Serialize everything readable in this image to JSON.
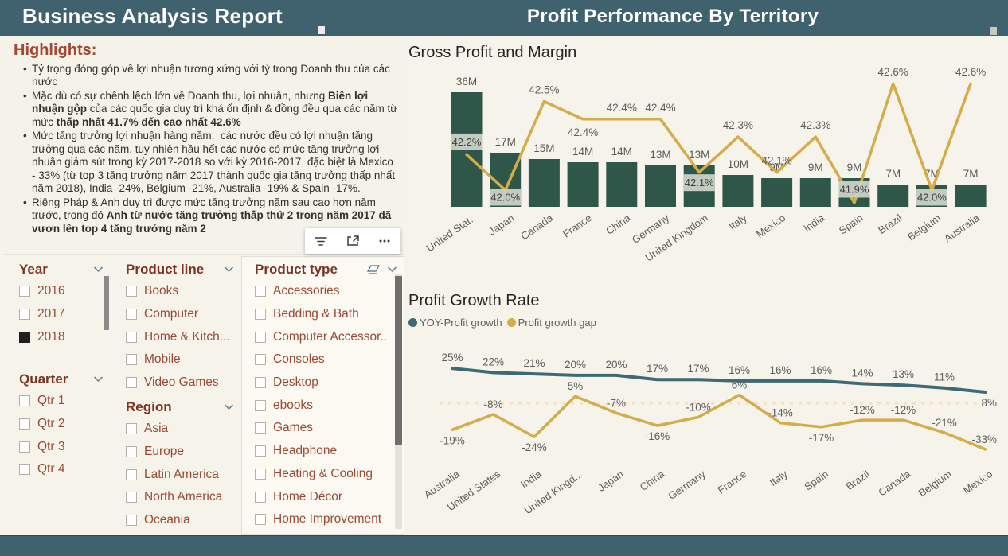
{
  "header": {
    "left_title": "Business Analysis Report",
    "right_title": "Profit Performance By Territory"
  },
  "highlights": {
    "title": "Highlights:",
    "bullets": [
      [
        {
          "t": "Tỷ trọng đóng góp về lợi nhuận tương xứng với tỷ trong Doanh thu của các nước"
        }
      ],
      [
        {
          "t": "Mặc dù có sự chênh lệch lớn về Doanh thu, lợi nhuận, nhưng "
        },
        {
          "t": "Biên lợi nhuận gộp",
          "b": true
        },
        {
          "t": " của các quốc gia duy trì khá ổn định & đồng đều qua các năm từ mức "
        },
        {
          "t": "thấp nhất 41.7% đến cao nhất 42.6%",
          "b": true
        }
      ],
      [
        {
          "t": "Mức tăng trưởng lợi nhuận hàng năm:  các nước đều có lợi nhuận tăng trưởng qua các năm, tuy nhiên hầu hết các nước có mức tăng trưởng lợi nhuận giảm sút trong kỳ 2017-2018 so với kỳ 2016-2017, đặc biệt là Mexico  - 33% (từ top 3 tăng trưởng năm 2017 thành quốc gia tăng trưởng thấp nhất năm 2018), India -24%, Belgium -21%, Australia -19% & Spain -17%."
        }
      ],
      [
        {
          "t": "Riêng Pháp & Anh duy trì được mức tăng trưởng năm sau cao hơn năm trước, trong đó "
        },
        {
          "t": "Anh từ nước tăng trưởng thấp thứ 2 trong năm 2017 đã vươn lên top 4 tăng trưởng năm 2",
          "b": true
        }
      ]
    ]
  },
  "toolbar": {
    "icons": [
      "filter",
      "focus-mode",
      "more-options"
    ]
  },
  "slicers": {
    "year": {
      "title": "Year",
      "items": [
        {
          "label": "2016",
          "checked": false
        },
        {
          "label": "2017",
          "checked": false
        },
        {
          "label": "2018",
          "checked": true
        }
      ],
      "has_scrollbar": true
    },
    "quarter": {
      "title": "Quarter",
      "items": [
        {
          "label": "Qtr 1",
          "checked": false
        },
        {
          "label": "Qtr 2",
          "checked": false
        },
        {
          "label": "Qtr 3",
          "checked": false
        },
        {
          "label": "Qtr 4",
          "checked": false
        }
      ]
    },
    "product_line": {
      "title": "Product line",
      "items": [
        {
          "label": "Books",
          "checked": false
        },
        {
          "label": "Computer",
          "checked": false
        },
        {
          "label": "Home & Kitch...",
          "checked": false
        },
        {
          "label": "Mobile",
          "checked": false
        },
        {
          "label": "Video Games",
          "checked": false
        }
      ]
    },
    "region": {
      "title": "Region",
      "items": [
        {
          "label": "Asia",
          "checked": false
        },
        {
          "label": "Europe",
          "checked": false
        },
        {
          "label": "Latin America",
          "checked": false
        },
        {
          "label": "North America",
          "checked": false
        },
        {
          "label": "Oceania",
          "checked": false
        }
      ]
    },
    "product_type": {
      "title": "Product type",
      "items": [
        {
          "label": "Accessories",
          "checked": false
        },
        {
          "label": "Bedding & Bath",
          "checked": false
        },
        {
          "label": "Computer Accessor..",
          "checked": false
        },
        {
          "label": "Consoles",
          "checked": false
        },
        {
          "label": "Desktop",
          "checked": false
        },
        {
          "label": "ebooks",
          "checked": false
        },
        {
          "label": "Games",
          "checked": false
        },
        {
          "label": "Headphone",
          "checked": false
        },
        {
          "label": "Heating & Cooling",
          "checked": false
        },
        {
          "label": "Home Décor",
          "checked": false
        },
        {
          "label": "Home Improvement",
          "checked": false
        }
      ],
      "has_scrollbar": true,
      "has_eraser": true,
      "partial_last_item": true
    }
  },
  "chart_data": [
    {
      "type": "bar",
      "title": "Gross Profit and Margin",
      "categories": [
        "United Stat..",
        "Japan",
        "Canada",
        "France",
        "China",
        "Germany",
        "United Kingdom",
        "Italy",
        "Mexico",
        "India",
        "Spain",
        "Brazil",
        "Belgium",
        "Australia"
      ],
      "series": [
        {
          "name": "Gross Profit",
          "type": "bar",
          "unit": "M",
          "values": [
            36,
            17,
            15,
            14,
            14,
            13,
            13,
            10,
            9,
            9,
            9,
            7,
            7,
            7
          ]
        },
        {
          "name": "Margin",
          "type": "line",
          "unit": "%",
          "values": [
            42.2,
            42.0,
            42.5,
            42.4,
            42.4,
            42.4,
            42.1,
            42.3,
            42.1,
            42.3,
            41.9,
            42.6,
            42.0,
            42.6
          ]
        }
      ],
      "margin_band_indices": [
        0,
        1,
        6,
        10,
        12
      ],
      "margin_below_indices": [
        3
      ],
      "ylim_bars": [
        0,
        36
      ],
      "ylim_margin": [
        41.7,
        42.7
      ],
      "grid": false
    },
    {
      "type": "line",
      "title": "Profit Growth Rate",
      "categories": [
        "Australia",
        "United States",
        "India",
        "United Kingd...",
        "Japan",
        "China",
        "Germany",
        "France",
        "Italy",
        "Spain",
        "Brazil",
        "Canada",
        "Belgium",
        "Mexico"
      ],
      "series": [
        {
          "name": "YOY-Profit growth",
          "values": [
            25,
            22,
            21,
            20,
            20,
            17,
            17,
            16,
            16,
            16,
            14,
            13,
            11,
            8
          ]
        },
        {
          "name": "Profit growth gap",
          "values": [
            -19,
            -8,
            -24,
            5,
            -7,
            -16,
            -10,
            6,
            -14,
            -17,
            -12,
            -12,
            -21,
            -33
          ]
        }
      ],
      "gap_label_side": [
        "below",
        "above",
        "below",
        "above",
        "above",
        "below",
        "above",
        "above",
        "above",
        "below",
        "above",
        "above",
        "above",
        "above"
      ],
      "zero_line": true,
      "legend_position": "top-left",
      "grid": false
    }
  ],
  "colors": {
    "header_bg": "#40626E",
    "page_bg": "#F6F3EA",
    "bar": "#2F5749",
    "band": "#CBD2C8",
    "gold_line": "#D4AC4A",
    "teal_line": "#3D6A75",
    "zero_line": "#F2E3C4",
    "accent_red": "#A04A32",
    "slicer_header_text": "#7E3322",
    "slicer_item_text": "#9A4A33",
    "label_gray": "#5F5F5F",
    "title_text": "#252423"
  }
}
